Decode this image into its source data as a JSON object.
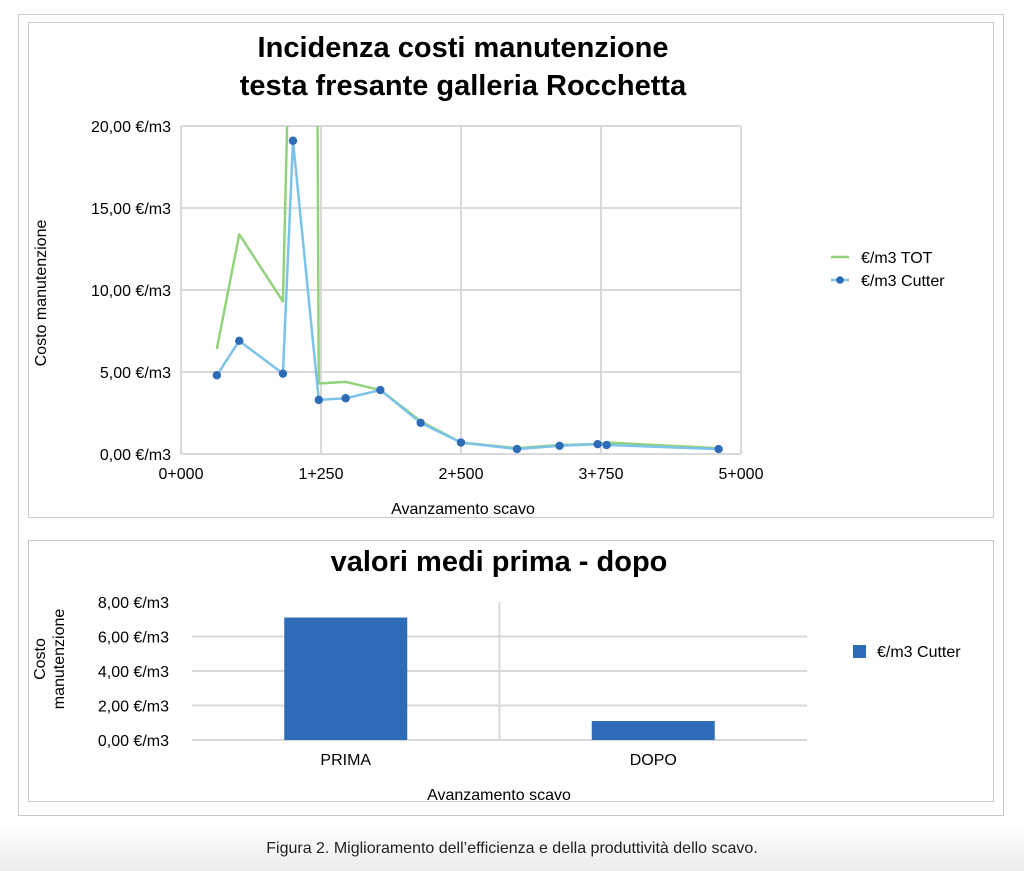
{
  "caption": "Figura 2. Miglioramento dell’efficienza e della produttività dello scavo.",
  "chart_data": [
    {
      "type": "line",
      "title": "Incidenza costi manutenzione testa fresante galleria Rocchetta",
      "title_lines": [
        "Incidenza costi manutenzione",
        "testa fresante galleria Rocchetta"
      ],
      "xlabel": "Avanzamento scavo",
      "ylabel": "Costo manutenzione",
      "xlim": [
        0,
        5000
      ],
      "ylim": [
        0,
        20
      ],
      "x_ticks": [
        0,
        1250,
        2500,
        3750,
        5000
      ],
      "x_tick_labels": [
        "0+000",
        "1+250",
        "2+500",
        "3+750",
        "5+000"
      ],
      "y_ticks": [
        0,
        5,
        10,
        15,
        20
      ],
      "y_tick_labels": [
        "0,00 €/m3",
        "5,00 €/m3",
        "10,00 €/m3",
        "15,00 €/m3",
        "20,00 €/m3"
      ],
      "grid": true,
      "legend_position": "right",
      "series": [
        {
          "name": "€/m3 TOT",
          "color": "#92d27a",
          "markers": false,
          "x": [
            320,
            520,
            910,
            1000,
            1210,
            1230,
            1470,
            1780,
            2140,
            2500,
            3000,
            3380,
            3720,
            3800,
            4800
          ],
          "y": [
            6.4,
            13.4,
            9.3,
            35,
            35,
            4.3,
            4.4,
            3.9,
            2.0,
            0.7,
            0.35,
            0.55,
            0.6,
            0.7,
            0.35
          ]
        },
        {
          "name": "€/m3 Cutter",
          "color": "#7cc3ec",
          "marker_color": "#2f6cb8",
          "markers": true,
          "x": [
            320,
            520,
            910,
            1000,
            1230,
            1470,
            1780,
            2140,
            2500,
            3000,
            3380,
            3720,
            3800,
            4800
          ],
          "y": [
            4.8,
            6.9,
            4.9,
            19.1,
            3.3,
            3.4,
            3.9,
            1.9,
            0.7,
            0.3,
            0.5,
            0.6,
            0.55,
            0.3
          ]
        }
      ]
    },
    {
      "type": "bar",
      "title": "valori medi prima - dopo",
      "xlabel": "Avanzamento scavo",
      "ylabel_lines": [
        "Costo",
        "manutenzione"
      ],
      "categories": [
        "PRIMA",
        "DOPO"
      ],
      "ylim": [
        0,
        8
      ],
      "y_ticks": [
        0,
        2,
        4,
        6,
        8
      ],
      "y_tick_labels": [
        "0,00 €/m3",
        "2,00 €/m3",
        "4,00 €/m3",
        "6,00 €/m3",
        "8,00 €/m3"
      ],
      "grid": true,
      "legend_position": "right",
      "series": [
        {
          "name": "€/m3 Cutter",
          "color": "#2f6cb8",
          "values": [
            7.1,
            1.1
          ]
        }
      ]
    }
  ]
}
